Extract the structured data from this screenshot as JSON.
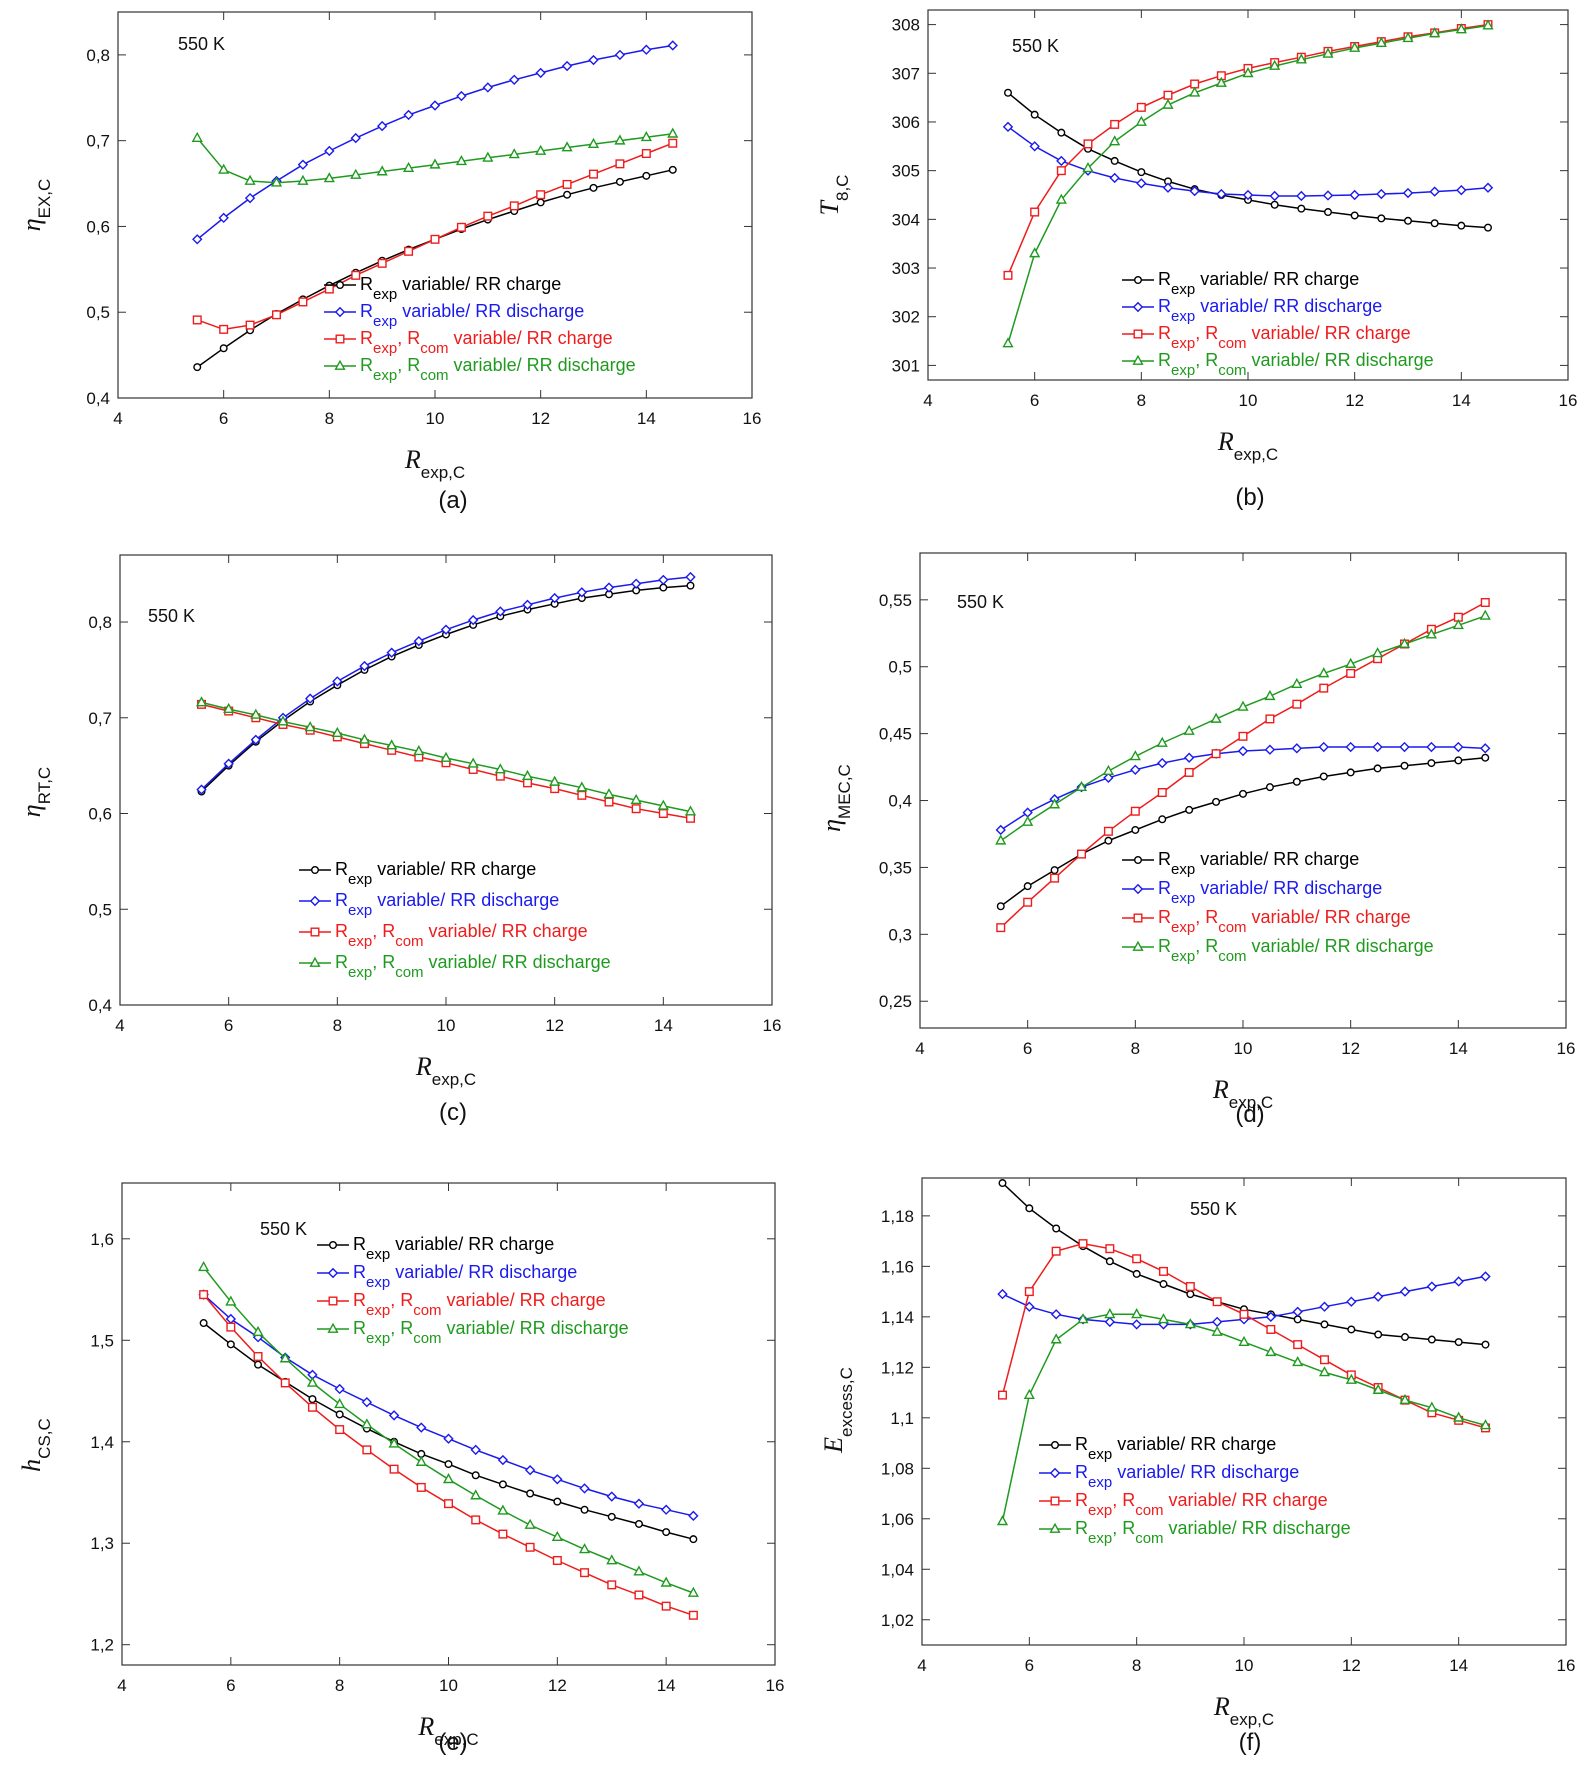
{
  "series_colors": [
    "#000000",
    "#1a1aee",
    "#ee1c1c",
    "#1f9a1f"
  ],
  "series_markers": [
    "circle",
    "diamond",
    "square",
    "triangle"
  ],
  "chart_data": [
    {
      "type": "line",
      "caption": "(a)",
      "annotation": "550 K",
      "ylabel": {
        "main": "η",
        "sub": "EX,C"
      },
      "xlabel": {
        "main": "R",
        "sub": "exp,C"
      },
      "xlim": [
        4,
        16
      ],
      "xticks": [
        "4",
        "6",
        "8",
        "10",
        "12",
        "14",
        "16"
      ],
      "ylim": [
        0.4,
        0.85
      ],
      "yticks": [
        {
          "v": 0.4,
          "t": "0,4"
        },
        {
          "v": 0.5,
          "t": "0,5"
        },
        {
          "v": 0.6,
          "t": "0,6"
        },
        {
          "v": 0.7,
          "t": "0,7"
        },
        {
          "v": 0.8,
          "t": "0,8"
        }
      ],
      "x": [
        5.5,
        6,
        6.5,
        7,
        7.5,
        8,
        8.5,
        9,
        9.5,
        10,
        10.5,
        11,
        11.5,
        12,
        12.5,
        13,
        13.5,
        14,
        14.5
      ],
      "series": [
        {
          "values": [
            0.436,
            0.458,
            0.479,
            0.498,
            0.515,
            0.531,
            0.546,
            0.56,
            0.573,
            0.585,
            0.597,
            0.608,
            0.618,
            0.628,
            0.637,
            0.645,
            0.652,
            0.659,
            0.666
          ]
        },
        {
          "values": [
            0.585,
            0.61,
            0.633,
            0.653,
            0.672,
            0.688,
            0.703,
            0.717,
            0.73,
            0.741,
            0.752,
            0.762,
            0.771,
            0.779,
            0.787,
            0.794,
            0.8,
            0.806,
            0.811
          ]
        },
        {
          "values": [
            0.491,
            0.48,
            0.485,
            0.497,
            0.512,
            0.527,
            0.543,
            0.557,
            0.571,
            0.585,
            0.599,
            0.612,
            0.624,
            0.637,
            0.649,
            0.661,
            0.673,
            0.685,
            0.697
          ]
        },
        {
          "values": [
            0.703,
            0.666,
            0.653,
            0.651,
            0.653,
            0.656,
            0.66,
            0.664,
            0.668,
            0.672,
            0.676,
            0.68,
            0.684,
            0.688,
            0.692,
            0.696,
            0.7,
            0.704,
            0.708
          ]
        }
      ]
    },
    {
      "type": "line",
      "caption": "(b)",
      "annotation": "550 K",
      "ylabel": {
        "main": "T",
        "sub": "8,C"
      },
      "xlabel": {
        "main": "R",
        "sub": "exp,C"
      },
      "xlim": [
        4,
        16
      ],
      "xticks": [
        "4",
        "6",
        "8",
        "10",
        "12",
        "14",
        "16"
      ],
      "ylim": [
        300.7,
        308.3
      ],
      "yticks": [
        {
          "v": 301,
          "t": "301"
        },
        {
          "v": 302,
          "t": "302"
        },
        {
          "v": 303,
          "t": "303"
        },
        {
          "v": 304,
          "t": "304"
        },
        {
          "v": 305,
          "t": "305"
        },
        {
          "v": 306,
          "t": "306"
        },
        {
          "v": 307,
          "t": "307"
        },
        {
          "v": 308,
          "t": "308"
        }
      ],
      "x": [
        5.5,
        6,
        6.5,
        7,
        7.5,
        8,
        8.5,
        9,
        9.5,
        10,
        10.5,
        11,
        11.5,
        12,
        12.5,
        13,
        13.5,
        14,
        14.5
      ],
      "series": [
        {
          "values": [
            306.6,
            306.15,
            305.78,
            305.45,
            305.2,
            304.97,
            304.78,
            304.62,
            304.5,
            304.4,
            304.3,
            304.22,
            304.15,
            304.08,
            304.02,
            303.97,
            303.92,
            303.87,
            303.83
          ]
        },
        {
          "values": [
            305.9,
            305.5,
            305.2,
            305.0,
            304.85,
            304.74,
            304.65,
            304.58,
            304.52,
            304.5,
            304.48,
            304.48,
            304.49,
            304.5,
            304.52,
            304.54,
            304.57,
            304.6,
            304.65
          ]
        },
        {
          "values": [
            302.85,
            304.15,
            305.0,
            305.55,
            305.95,
            306.3,
            306.55,
            306.78,
            306.95,
            307.1,
            307.22,
            307.33,
            307.45,
            307.55,
            307.65,
            307.75,
            307.83,
            307.92,
            308.0
          ]
        },
        {
          "values": [
            301.45,
            303.3,
            304.4,
            305.05,
            305.6,
            306.0,
            306.35,
            306.6,
            306.8,
            307.0,
            307.15,
            307.28,
            307.4,
            307.52,
            307.62,
            307.72,
            307.82,
            307.9,
            307.98
          ]
        }
      ]
    },
    {
      "type": "line",
      "caption": "(c)",
      "annotation": "550 K",
      "ylabel": {
        "main": "η",
        "sub": "RT,C"
      },
      "xlabel": {
        "main": "R",
        "sub": "exp,C"
      },
      "xlim": [
        4,
        16
      ],
      "xticks": [
        "4",
        "6",
        "8",
        "10",
        "12",
        "14",
        "16"
      ],
      "ylim": [
        0.4,
        0.87
      ],
      "yticks": [
        {
          "v": 0.4,
          "t": "0,4"
        },
        {
          "v": 0.5,
          "t": "0,5"
        },
        {
          "v": 0.6,
          "t": "0,6"
        },
        {
          "v": 0.7,
          "t": "0,7"
        },
        {
          "v": 0.8,
          "t": "0,8"
        }
      ],
      "x": [
        5.5,
        6,
        6.5,
        7,
        7.5,
        8,
        8.5,
        9,
        9.5,
        10,
        10.5,
        11,
        11.5,
        12,
        12.5,
        13,
        13.5,
        14,
        14.5
      ],
      "series": [
        {
          "values": [
            0.623,
            0.65,
            0.675,
            0.697,
            0.717,
            0.734,
            0.75,
            0.764,
            0.776,
            0.787,
            0.797,
            0.806,
            0.813,
            0.819,
            0.825,
            0.829,
            0.833,
            0.836,
            0.838
          ]
        },
        {
          "values": [
            0.625,
            0.652,
            0.677,
            0.7,
            0.72,
            0.738,
            0.754,
            0.768,
            0.78,
            0.792,
            0.802,
            0.811,
            0.818,
            0.825,
            0.831,
            0.836,
            0.84,
            0.844,
            0.847
          ]
        },
        {
          "values": [
            0.714,
            0.707,
            0.7,
            0.693,
            0.687,
            0.68,
            0.673,
            0.666,
            0.659,
            0.653,
            0.646,
            0.639,
            0.632,
            0.626,
            0.619,
            0.612,
            0.605,
            0.6,
            0.595
          ]
        },
        {
          "values": [
            0.716,
            0.709,
            0.703,
            0.696,
            0.69,
            0.684,
            0.677,
            0.671,
            0.665,
            0.658,
            0.652,
            0.646,
            0.639,
            0.633,
            0.627,
            0.62,
            0.614,
            0.608,
            0.602
          ]
        }
      ]
    },
    {
      "type": "line",
      "caption": "(d)",
      "annotation": "550 K",
      "ylabel": {
        "main": "η",
        "sub": "MEC,C"
      },
      "xlabel": {
        "main": "R",
        "sub": "exp,C"
      },
      "xlim": [
        4,
        16
      ],
      "xticks": [
        "4",
        "6",
        "8",
        "10",
        "12",
        "14",
        "16"
      ],
      "ylim": [
        0.23,
        0.585
      ],
      "yticks": [
        {
          "v": 0.25,
          "t": "0,25"
        },
        {
          "v": 0.3,
          "t": "0,3"
        },
        {
          "v": 0.35,
          "t": "0,35"
        },
        {
          "v": 0.4,
          "t": "0,4"
        },
        {
          "v": 0.45,
          "t": "0,45"
        },
        {
          "v": 0.5,
          "t": "0,5"
        },
        {
          "v": 0.55,
          "t": "0,55"
        }
      ],
      "x": [
        5.5,
        6,
        6.5,
        7,
        7.5,
        8,
        8.5,
        9,
        9.5,
        10,
        10.5,
        11,
        11.5,
        12,
        12.5,
        13,
        13.5,
        14,
        14.5
      ],
      "series": [
        {
          "values": [
            0.321,
            0.336,
            0.348,
            0.36,
            0.37,
            0.378,
            0.386,
            0.393,
            0.399,
            0.405,
            0.41,
            0.414,
            0.418,
            0.421,
            0.424,
            0.426,
            0.428,
            0.43,
            0.432
          ]
        },
        {
          "values": [
            0.378,
            0.391,
            0.401,
            0.41,
            0.417,
            0.423,
            0.428,
            0.432,
            0.435,
            0.437,
            0.438,
            0.439,
            0.44,
            0.44,
            0.44,
            0.44,
            0.44,
            0.44,
            0.439
          ]
        },
        {
          "values": [
            0.305,
            0.324,
            0.342,
            0.36,
            0.377,
            0.392,
            0.406,
            0.421,
            0.435,
            0.448,
            0.461,
            0.472,
            0.484,
            0.495,
            0.506,
            0.517,
            0.528,
            0.537,
            0.548
          ]
        },
        {
          "values": [
            0.37,
            0.384,
            0.397,
            0.41,
            0.422,
            0.433,
            0.443,
            0.452,
            0.461,
            0.47,
            0.478,
            0.487,
            0.495,
            0.502,
            0.51,
            0.517,
            0.524,
            0.531,
            0.538
          ]
        }
      ]
    },
    {
      "type": "line",
      "caption": "(e)",
      "annotation": "550 K",
      "ylabel": {
        "main": "h",
        "sub": "CS,C"
      },
      "xlabel": {
        "main": "R",
        "sub": "exp,C"
      },
      "xlim": [
        4,
        16
      ],
      "xticks": [
        "4",
        "6",
        "8",
        "10",
        "12",
        "14",
        "16"
      ],
      "ylim": [
        1.18,
        1.655
      ],
      "yticks": [
        {
          "v": 1.2,
          "t": "1,2"
        },
        {
          "v": 1.3,
          "t": "1,3"
        },
        {
          "v": 1.4,
          "t": "1,4"
        },
        {
          "v": 1.5,
          "t": "1,5"
        },
        {
          "v": 1.6,
          "t": "1,6"
        }
      ],
      "x": [
        5.5,
        6,
        6.5,
        7,
        7.5,
        8,
        8.5,
        9,
        9.5,
        10,
        10.5,
        11,
        11.5,
        12,
        12.5,
        13,
        13.5,
        14,
        14.5
      ],
      "series": [
        {
          "values": [
            1.517,
            1.496,
            1.476,
            1.459,
            1.442,
            1.427,
            1.413,
            1.4,
            1.388,
            1.378,
            1.367,
            1.358,
            1.349,
            1.341,
            1.333,
            1.326,
            1.319,
            1.311,
            1.304
          ]
        },
        {
          "values": [
            1.545,
            1.521,
            1.503,
            1.483,
            1.466,
            1.452,
            1.439,
            1.426,
            1.414,
            1.403,
            1.392,
            1.382,
            1.372,
            1.363,
            1.354,
            1.346,
            1.339,
            1.333,
            1.327
          ]
        },
        {
          "values": [
            1.545,
            1.513,
            1.484,
            1.458,
            1.434,
            1.412,
            1.392,
            1.373,
            1.355,
            1.339,
            1.323,
            1.309,
            1.296,
            1.283,
            1.271,
            1.259,
            1.249,
            1.238,
            1.229
          ]
        },
        {
          "values": [
            1.572,
            1.538,
            1.508,
            1.482,
            1.458,
            1.437,
            1.417,
            1.398,
            1.38,
            1.363,
            1.347,
            1.332,
            1.318,
            1.306,
            1.294,
            1.283,
            1.272,
            1.261,
            1.251
          ]
        }
      ]
    },
    {
      "type": "line",
      "caption": "(f)",
      "annotation": "550 K",
      "ylabel": {
        "main": "E",
        "sub": "excess,C"
      },
      "xlabel": {
        "main": "R",
        "sub": "exp,C"
      },
      "xlim": [
        4,
        16
      ],
      "xticks": [
        "4",
        "6",
        "8",
        "10",
        "12",
        "14",
        "16"
      ],
      "ylim": [
        1.01,
        1.195
      ],
      "yticks": [
        {
          "v": 1.02,
          "t": "1,02"
        },
        {
          "v": 1.04,
          "t": "1,04"
        },
        {
          "v": 1.06,
          "t": "1,06"
        },
        {
          "v": 1.08,
          "t": "1,08"
        },
        {
          "v": 1.1,
          "t": "1,1"
        },
        {
          "v": 1.12,
          "t": "1,12"
        },
        {
          "v": 1.14,
          "t": "1,14"
        },
        {
          "v": 1.16,
          "t": "1,16"
        },
        {
          "v": 1.18,
          "t": "1,18"
        }
      ],
      "x": [
        5.5,
        6,
        6.5,
        7,
        7.5,
        8,
        8.5,
        9,
        9.5,
        10,
        10.5,
        11,
        11.5,
        12,
        12.5,
        13,
        13.5,
        14,
        14.5
      ],
      "series": [
        {
          "values": [
            1.193,
            1.183,
            1.175,
            1.168,
            1.162,
            1.157,
            1.153,
            1.149,
            1.146,
            1.143,
            1.141,
            1.139,
            1.137,
            1.135,
            1.133,
            1.132,
            1.131,
            1.13,
            1.129
          ]
        },
        {
          "values": [
            1.149,
            1.144,
            1.141,
            1.139,
            1.138,
            1.137,
            1.137,
            1.137,
            1.138,
            1.139,
            1.14,
            1.142,
            1.144,
            1.146,
            1.148,
            1.15,
            1.152,
            1.154,
            1.156
          ]
        },
        {
          "values": [
            1.109,
            1.15,
            1.166,
            1.169,
            1.167,
            1.163,
            1.158,
            1.152,
            1.146,
            1.141,
            1.135,
            1.129,
            1.123,
            1.117,
            1.112,
            1.107,
            1.102,
            1.099,
            1.096
          ]
        },
        {
          "values": [
            1.059,
            1.109,
            1.131,
            1.139,
            1.141,
            1.141,
            1.139,
            1.137,
            1.134,
            1.13,
            1.126,
            1.122,
            1.118,
            1.115,
            1.111,
            1.107,
            1.104,
            1.1,
            1.097
          ]
        }
      ]
    }
  ],
  "legend_items": [
    {
      "r1": "R",
      "s1": "exp",
      "r2": "",
      "s2": "",
      "tail": " variable/ RR charge"
    },
    {
      "r1": "R",
      "s1": "exp",
      "r2": "",
      "s2": "",
      "tail": " variable/ RR discharge"
    },
    {
      "r1": "R",
      "s1": "exp",
      "r2": ", R",
      "s2": "com",
      "tail": " variable/ RR charge"
    },
    {
      "r1": "R",
      "s1": "exp",
      "r2": ", R",
      "s2": "com",
      "tail": " variable/ RR discharge"
    }
  ]
}
